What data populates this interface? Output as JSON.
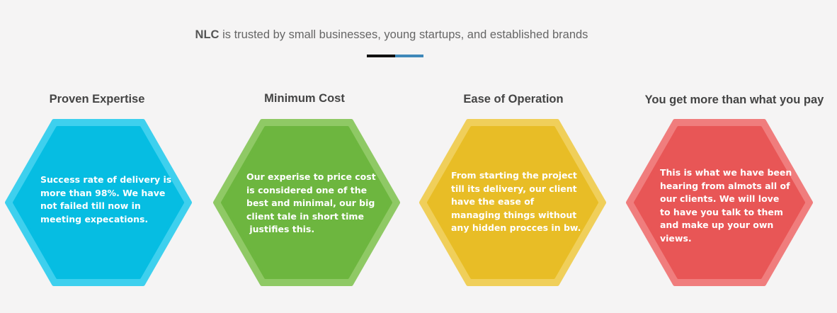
{
  "header": {
    "brand": "NLC",
    "tagline": "is trusted by small businesses, young startups, and established brands",
    "divider_colors": [
      "#111111",
      "#3f88b9"
    ]
  },
  "features": [
    {
      "title": "Proven Expertise",
      "color": "#06bde2",
      "border": "#3ed0ee",
      "lines": [
        "Success rate of delivery is",
        "more than 98%. We have",
        "not failed till now in",
        "meeting expecations."
      ]
    },
    {
      "title": "Minimum Cost",
      "color": "#6db63f",
      "border": "#8fc965",
      "lines": [
        "Our experise to price cost",
        "is considered one of the",
        "best and minimal, our big",
        "client tale in short time",
        " justifies this."
      ]
    },
    {
      "title": "Ease of Operation",
      "color": "#e8bd26",
      "border": "#f0cf5a",
      "lines": [
        "From starting the project",
        "till its delivery, our client",
        "have the ease of",
        "managing things without",
        "any hidden procces in bw."
      ]
    },
    {
      "title": "You get more than what you pay",
      "color": "#e85656",
      "border": "#f07d7d",
      "lines": [
        "This is what we have been",
        "hearing from almots all of",
        "our clients. We will love",
        "to have you talk to them",
        "and make up your own",
        "views."
      ]
    }
  ]
}
